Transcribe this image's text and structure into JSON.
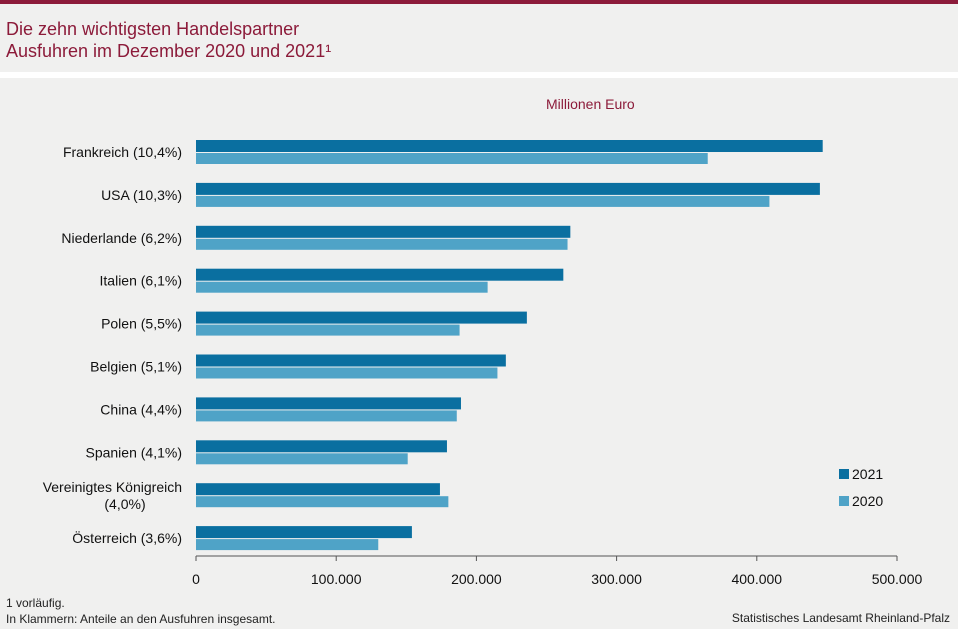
{
  "header": {
    "title_line1": "Die zehn wichtigsten Handelspartner",
    "title_line2": "Ausfuhren im Dezember 2020 und 2021¹"
  },
  "chart_data": {
    "type": "bar",
    "orientation": "horizontal",
    "unit_label": "Millionen Euro",
    "categories": [
      "Frankreich (10,4%)",
      "USA (10,3%)",
      "Niederlande (6,2%)",
      "Italien (6,1%)",
      "Polen (5,5%)",
      "Belgien (5,1%)",
      "China (4,4%)",
      "Spanien (4,1%)",
      "Vereinigtes Königreich (4,0%)",
      "Österreich (3,6%)"
    ],
    "series": [
      {
        "name": "2021",
        "color": "#0a6fa0",
        "values": [
          447000,
          445000,
          267000,
          262000,
          236000,
          221000,
          189000,
          179000,
          174000,
          154000
        ]
      },
      {
        "name": "2020",
        "color": "#4fa3c7",
        "values": [
          365000,
          409000,
          265000,
          208000,
          188000,
          215000,
          186000,
          151000,
          180000,
          130000
        ]
      }
    ],
    "xlim": [
      0,
      500000
    ],
    "xticks": [
      0,
      100000,
      200000,
      300000,
      400000,
      500000
    ],
    "xtick_labels": [
      "0",
      "100.000",
      "200.000",
      "300.000",
      "400.000",
      "500.000"
    ],
    "legend_position": "right",
    "grid": false
  },
  "footnotes": {
    "note1": "1 vorläufig.",
    "note2": "In Klammern: Anteile an den Ausfuhren insgesamt."
  },
  "source": "Statistisches Landesamt Rheinland-Pfalz"
}
